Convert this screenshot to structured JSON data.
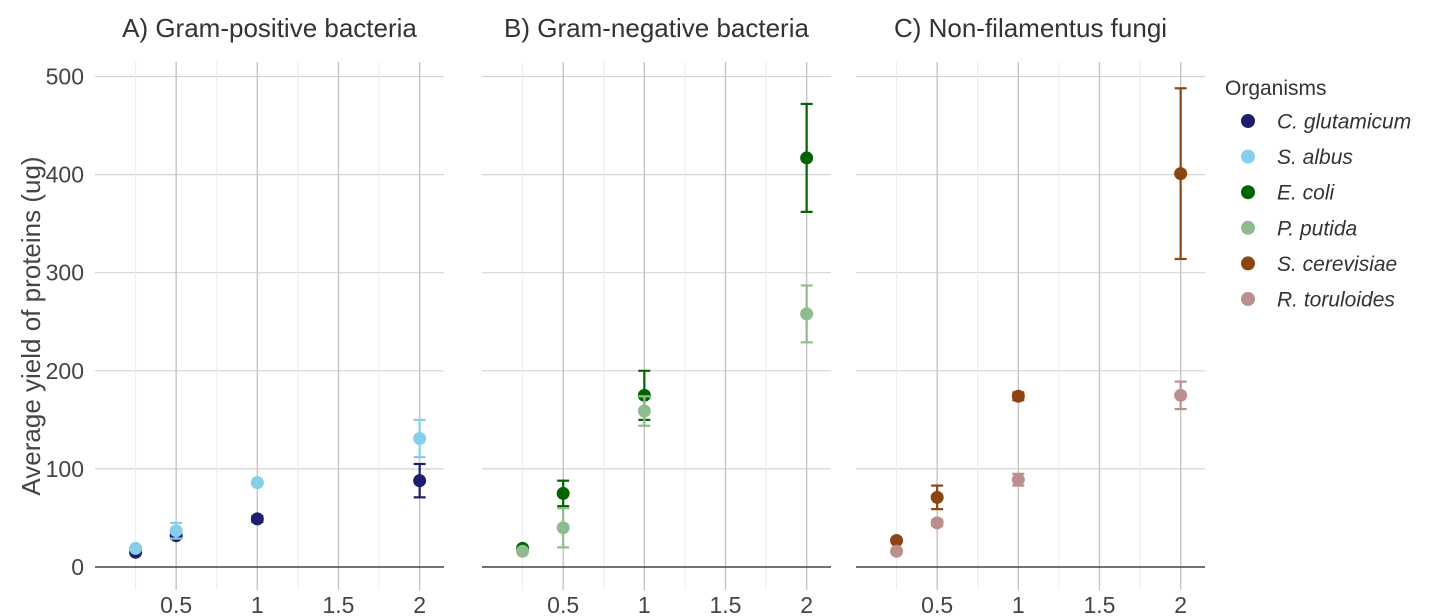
{
  "chart_data": {
    "type": "scatter",
    "ylabel": "Average yield of proteins (ug)",
    "ylim": [
      0,
      500
    ],
    "yticks": [
      0,
      100,
      200,
      300,
      400,
      500
    ],
    "xlim": [
      0.0,
      2.15
    ],
    "xticks": [
      0.5,
      1,
      1.5,
      2
    ],
    "xtick_labels": [
      "0.5",
      "1",
      "1.5",
      "2"
    ],
    "grid": true,
    "legend": {
      "title": "Organisms",
      "placement": "right",
      "entries": [
        {
          "name": "C. glutamicum",
          "color": "#1b1f6e"
        },
        {
          "name": "S. albus",
          "color": "#87ceeb"
        },
        {
          "name": "E. coli",
          "color": "#006400"
        },
        {
          "name": "P. putida",
          "color": "#8fbc8f"
        },
        {
          "name": "S. cerevisiae",
          "color": "#8b4513"
        },
        {
          "name": "R. toruloides",
          "color": "#bc8f8f"
        }
      ]
    },
    "panels": [
      {
        "title": "A) Gram-positive bacteria",
        "series": [
          {
            "name": "C. glutamicum",
            "color": "#1b1f6e",
            "x": [
              0.25,
              0.5,
              1,
              2
            ],
            "y": [
              15,
              32,
              49,
              88
            ],
            "err": [
              1,
              3,
              3,
              17
            ]
          },
          {
            "name": "S. albus",
            "color": "#87ceeb",
            "x": [
              0.25,
              0.5,
              1,
              2
            ],
            "y": [
              19,
              37,
              86,
              131
            ],
            "err": [
              1,
              8,
              1,
              19
            ]
          }
        ]
      },
      {
        "title": "B) Gram-negative bacteria",
        "series": [
          {
            "name": "E. coli",
            "color": "#006400",
            "x": [
              0.25,
              0.5,
              1,
              2
            ],
            "y": [
              19,
              75,
              175,
              417
            ],
            "err": [
              1,
              13,
              25,
              55
            ]
          },
          {
            "name": "P. putida",
            "color": "#8fbc8f",
            "x": [
              0.25,
              0.5,
              1,
              2
            ],
            "y": [
              16,
              40,
              159,
              258
            ],
            "err": [
              1,
              20,
              15,
              29
            ]
          }
        ]
      },
      {
        "title": "C) Non-filamentus fungi",
        "series": [
          {
            "name": "S. cerevisiae",
            "color": "#8b4513",
            "x": [
              0.25,
              0.5,
              1,
              2
            ],
            "y": [
              27,
              71,
              174,
              401
            ],
            "err": [
              1,
              12,
              4,
              87
            ]
          },
          {
            "name": "R. toruloides",
            "color": "#bc8f8f",
            "x": [
              0.25,
              0.5,
              1,
              2
            ],
            "y": [
              16,
              45,
              89,
              175
            ],
            "err": [
              2,
              3,
              6,
              14
            ]
          }
        ]
      }
    ]
  }
}
